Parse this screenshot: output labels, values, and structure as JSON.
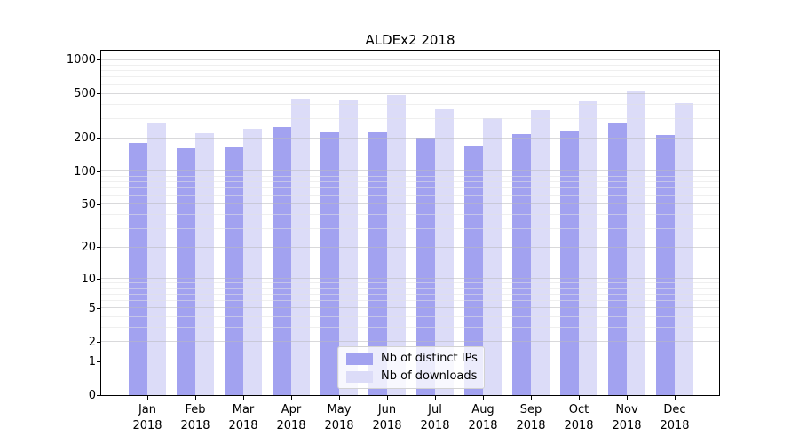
{
  "title": "ALDEx2 2018",
  "chart_data": {
    "type": "bar",
    "title": "ALDEx2 2018",
    "x_year_label": "2018",
    "categories": [
      "Jan",
      "Feb",
      "Mar",
      "Apr",
      "May",
      "Jun",
      "Jul",
      "Aug",
      "Sep",
      "Oct",
      "Nov",
      "Dec"
    ],
    "series": [
      {
        "name": "Nb of distinct IPs",
        "color": "#a2a2f0",
        "values": [
          182,
          163,
          169,
          254,
          225,
          225,
          201,
          172,
          219,
          236,
          277,
          214
        ]
      },
      {
        "name": "Nb of downloads",
        "color": "#dcdcf8",
        "values": [
          272,
          222,
          244,
          458,
          437,
          493,
          367,
          302,
          357,
          433,
          538,
          418
        ]
      }
    ],
    "y_ticks": [
      0,
      1,
      2,
      5,
      10,
      20,
      50,
      100,
      200,
      500,
      1000
    ],
    "y_scale": "log10(value+1)",
    "ylim": [
      0,
      1000
    ],
    "grid": {
      "show": true,
      "which": "both",
      "orientation": "horizontal"
    },
    "legend": {
      "position": "lower center",
      "items": [
        "Nb of distinct IPs",
        "Nb of downloads"
      ]
    }
  }
}
